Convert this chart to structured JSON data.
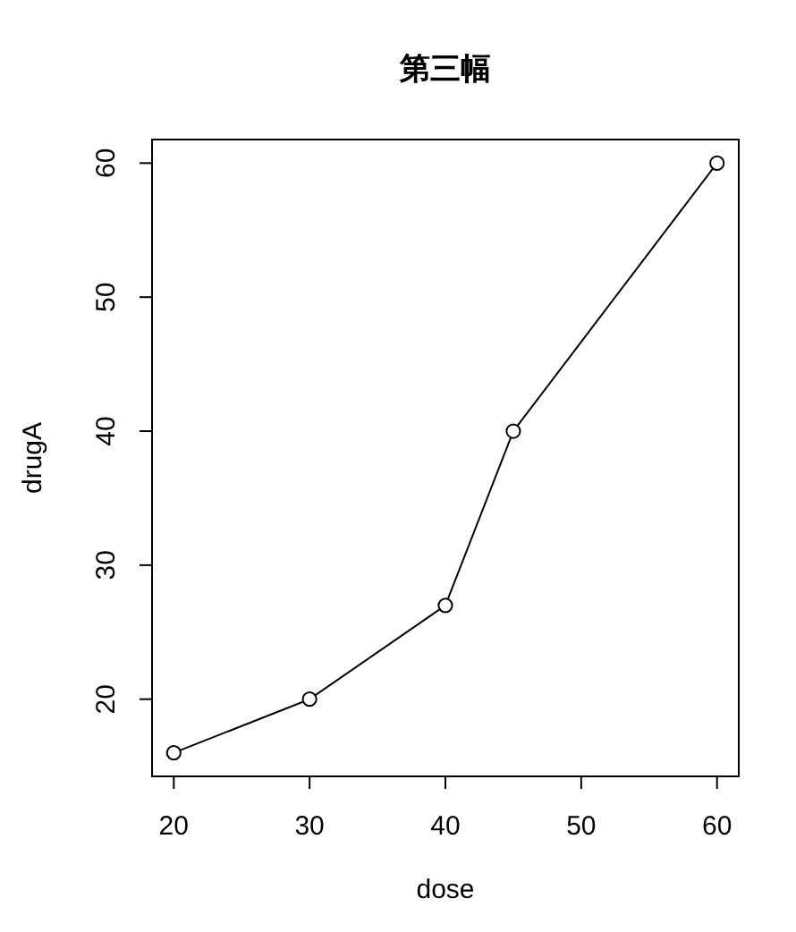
{
  "chart_data": {
    "type": "line",
    "title": "第三幅",
    "xlabel": "dose",
    "ylabel": "drugA",
    "x": [
      20,
      30,
      40,
      45,
      60
    ],
    "values": [
      16,
      20,
      27,
      40,
      60
    ],
    "color": "#000000",
    "xlim": [
      18.4,
      61.6
    ],
    "xticks": [
      20,
      30,
      40,
      50,
      60
    ],
    "ylim": [
      14.24,
      61.76
    ],
    "yticks": [
      20,
      30,
      40,
      50,
      60
    ],
    "marker": "circle",
    "line_style": "solid"
  }
}
